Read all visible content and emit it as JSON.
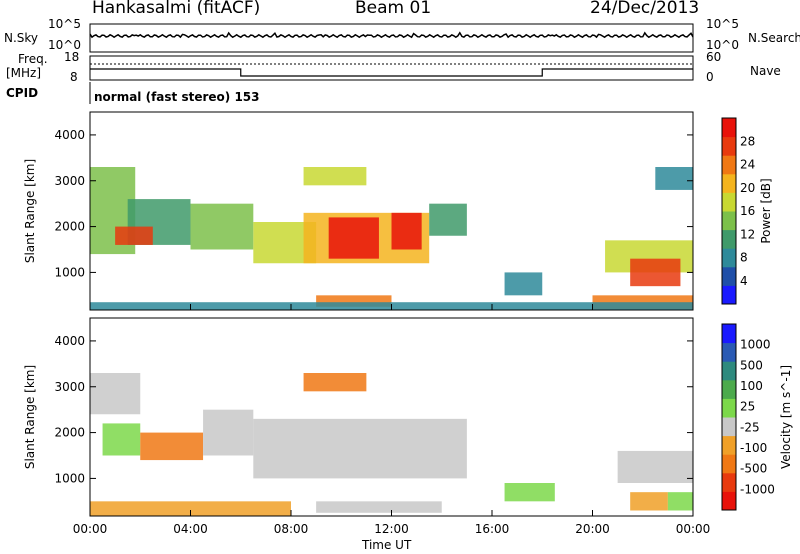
{
  "header": {
    "station": "Hankasalmi (fitACF)",
    "beam": "Beam 01",
    "date": "24/Dec/2013"
  },
  "top_panel": {
    "nsky_label": "N.Sky",
    "nsearch_label": "N.Search",
    "left_ticks": [
      "10^5",
      "10^0"
    ],
    "right_ticks": [
      "10^5",
      "10^0"
    ]
  },
  "freq_panel": {
    "freq_label": "Freq.",
    "freq_unit": "[MHz]",
    "nave_label": "Nave",
    "left_ticks": [
      "18",
      "8"
    ],
    "right_ticks": [
      "60",
      "0"
    ]
  },
  "cpid": {
    "label": "CPID",
    "text": "normal (fast stereo) 153"
  },
  "x_axis": {
    "label": "Time UT",
    "ticks": [
      "00:00",
      "04:00",
      "08:00",
      "12:00",
      "16:00",
      "20:00",
      "00:00"
    ]
  },
  "colors": {
    "power_scale": [
      "#1a1aff",
      "#1f4fa8",
      "#2e8a9a",
      "#3f9a6a",
      "#7cc04a",
      "#c8d832",
      "#f4b41e",
      "#f07814",
      "#e83a0e",
      "#e8120a"
    ],
    "velocity_scale": [
      "#1a1aff",
      "#2a5ab4",
      "#2e8a7e",
      "#4caa4c",
      "#7cd84a",
      "#c8c8c8",
      "#f0a028",
      "#f07814",
      "#e83a0e",
      "#e8120a"
    ],
    "freq_trace": "#000000"
  },
  "chart_data": [
    {
      "type": "heatmap",
      "title": "",
      "xlabel": "Time UT",
      "ylabel": "Slant Range [km]",
      "xlim": [
        0,
        24
      ],
      "ylim": [
        180,
        4500
      ],
      "yticks": [
        "1000",
        "2000",
        "3000",
        "4000"
      ],
      "colorbar_label": "Power [dB]",
      "colorbar_ticks": [
        "4",
        "8",
        "12",
        "16",
        "20",
        "24",
        "28"
      ],
      "colorbar_range": [
        0,
        30
      ],
      "patches": [
        {
          "t": [
            0.0,
            1.8
          ],
          "range_km": [
            1400,
            3300
          ],
          "value": 14
        },
        {
          "t": [
            1.5,
            4.0
          ],
          "range_km": [
            1600,
            2600
          ],
          "value": 10
        },
        {
          "t": [
            1.0,
            2.5
          ],
          "range_km": [
            1600,
            2000
          ],
          "value": 24
        },
        {
          "t": [
            4.0,
            6.5
          ],
          "range_km": [
            1500,
            2500
          ],
          "value": 12
        },
        {
          "t": [
            6.5,
            9.0
          ],
          "range_km": [
            1200,
            2100
          ],
          "value": 16
        },
        {
          "t": [
            8.5,
            13.5
          ],
          "range_km": [
            1200,
            2300
          ],
          "value": 20
        },
        {
          "t": [
            9.5,
            11.5
          ],
          "range_km": [
            1300,
            2200
          ],
          "value": 28
        },
        {
          "t": [
            12.0,
            13.2
          ],
          "range_km": [
            1500,
            2300
          ],
          "value": 28
        },
        {
          "t": [
            13.5,
            15.0
          ],
          "range_km": [
            1800,
            2500
          ],
          "value": 10
        },
        {
          "t": [
            8.5,
            11.0
          ],
          "range_km": [
            2900,
            3300
          ],
          "value": 16
        },
        {
          "t": [
            9.0,
            12.0
          ],
          "range_km": [
            250,
            500
          ],
          "value": 22
        },
        {
          "t": [
            16.5,
            18.0
          ],
          "range_km": [
            500,
            1000
          ],
          "value": 8
        },
        {
          "t": [
            20.5,
            24.0
          ],
          "range_km": [
            1000,
            1700
          ],
          "value": 16
        },
        {
          "t": [
            21.5,
            23.5
          ],
          "range_km": [
            700,
            1300
          ],
          "value": 24
        },
        {
          "t": [
            20.0,
            24.0
          ],
          "range_km": [
            200,
            500
          ],
          "value": 22
        },
        {
          "t": [
            22.5,
            24.0
          ],
          "range_km": [
            2800,
            3300
          ],
          "value": 8
        },
        {
          "t": [
            0.0,
            24.0
          ],
          "range_km": [
            180,
            350
          ],
          "value": 6
        }
      ]
    },
    {
      "type": "heatmap",
      "title": "",
      "xlabel": "Time UT",
      "ylabel": "Slant Range [km]",
      "xlim": [
        0,
        24
      ],
      "ylim": [
        180,
        4500
      ],
      "yticks": [
        "1000",
        "2000",
        "3000",
        "4000"
      ],
      "colorbar_label": "Velocity [m s^-1]",
      "colorbar_ticks": [
        "1000",
        "500",
        "100",
        "25",
        "-25",
        "-100",
        "-500",
        "-1000"
      ],
      "patches": [
        {
          "t": [
            0.0,
            2.0
          ],
          "range_km": [
            2400,
            3300
          ],
          "value": 0
        },
        {
          "t": [
            0.5,
            2.0
          ],
          "range_km": [
            1500,
            2200
          ],
          "value": 80
        },
        {
          "t": [
            2.0,
            4.5
          ],
          "range_km": [
            1400,
            2000
          ],
          "value": -150
        },
        {
          "t": [
            4.5,
            6.5
          ],
          "range_km": [
            1500,
            2500
          ],
          "value": 0
        },
        {
          "t": [
            6.5,
            15.0
          ],
          "range_km": [
            1000,
            2300
          ],
          "value": 0
        },
        {
          "t": [
            8.5,
            11.0
          ],
          "range_km": [
            2900,
            3300
          ],
          "value": -120
        },
        {
          "t": [
            9.0,
            14.0
          ],
          "range_km": [
            250,
            500
          ],
          "value": 0
        },
        {
          "t": [
            16.5,
            18.5
          ],
          "range_km": [
            500,
            900
          ],
          "value": 80
        },
        {
          "t": [
            21.0,
            24.0
          ],
          "range_km": [
            900,
            1600
          ],
          "value": 0
        },
        {
          "t": [
            21.5,
            23.0
          ],
          "range_km": [
            300,
            700
          ],
          "value": -80
        },
        {
          "t": [
            23.0,
            24.0
          ],
          "range_km": [
            300,
            700
          ],
          "value": 80
        },
        {
          "t": [
            0.0,
            8.0
          ],
          "range_km": [
            180,
            500
          ],
          "value": -60
        }
      ]
    }
  ]
}
